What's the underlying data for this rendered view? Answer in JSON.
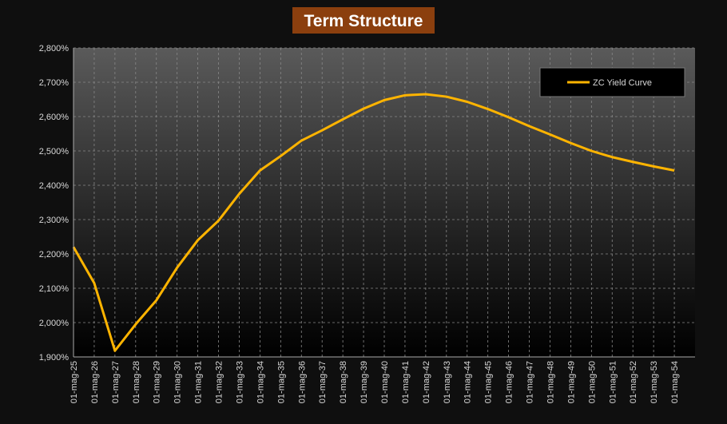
{
  "chart_data": {
    "type": "line",
    "title": "Term Structure",
    "categories": [
      "01-mag-25",
      "01-mag-26",
      "01-mag-27",
      "01-mag-28",
      "01-mag-29",
      "01-mag-30",
      "01-mag-31",
      "01-mag-32",
      "01-mag-33",
      "01-mag-34",
      "01-mag-35",
      "01-mag-36",
      "01-mag-37",
      "01-mag-38",
      "01-mag-39",
      "01-mag-40",
      "01-mag-41",
      "01-mag-42",
      "01-mag-43",
      "01-mag-44",
      "01-mag-45",
      "01-mag-46",
      "01-mag-47",
      "01-mag-48",
      "01-mag-49",
      "01-mag-50",
      "01-mag-51",
      "01-mag-52",
      "01-mag-53",
      "01-mag-54"
    ],
    "series": [
      {
        "name": "ZC Yield Curve",
        "color": "#ffb400",
        "values": [
          2.22,
          2.115,
          1.918,
          1.995,
          2.065,
          2.16,
          2.24,
          2.297,
          2.375,
          2.443,
          2.485,
          2.53,
          2.56,
          2.592,
          2.623,
          2.648,
          2.662,
          2.665,
          2.658,
          2.643,
          2.622,
          2.598,
          2.572,
          2.548,
          2.523,
          2.5,
          2.482,
          2.468,
          2.455,
          2.443
        ]
      }
    ],
    "ylim": [
      1.9,
      2.8
    ],
    "yticks": [
      {
        "value": 1.9,
        "label": "1,900%"
      },
      {
        "value": 2.0,
        "label": "2,000%"
      },
      {
        "value": 2.1,
        "label": "2,100%"
      },
      {
        "value": 2.2,
        "label": "2,200%"
      },
      {
        "value": 2.3,
        "label": "2,300%"
      },
      {
        "value": 2.4,
        "label": "2,400%"
      },
      {
        "value": 2.5,
        "label": "2,500%"
      },
      {
        "value": 2.6,
        "label": "2,600%"
      },
      {
        "value": 2.7,
        "label": "2,700%"
      },
      {
        "value": 2.8,
        "label": "2,800%"
      }
    ],
    "grid": true,
    "legend": "upper right"
  }
}
